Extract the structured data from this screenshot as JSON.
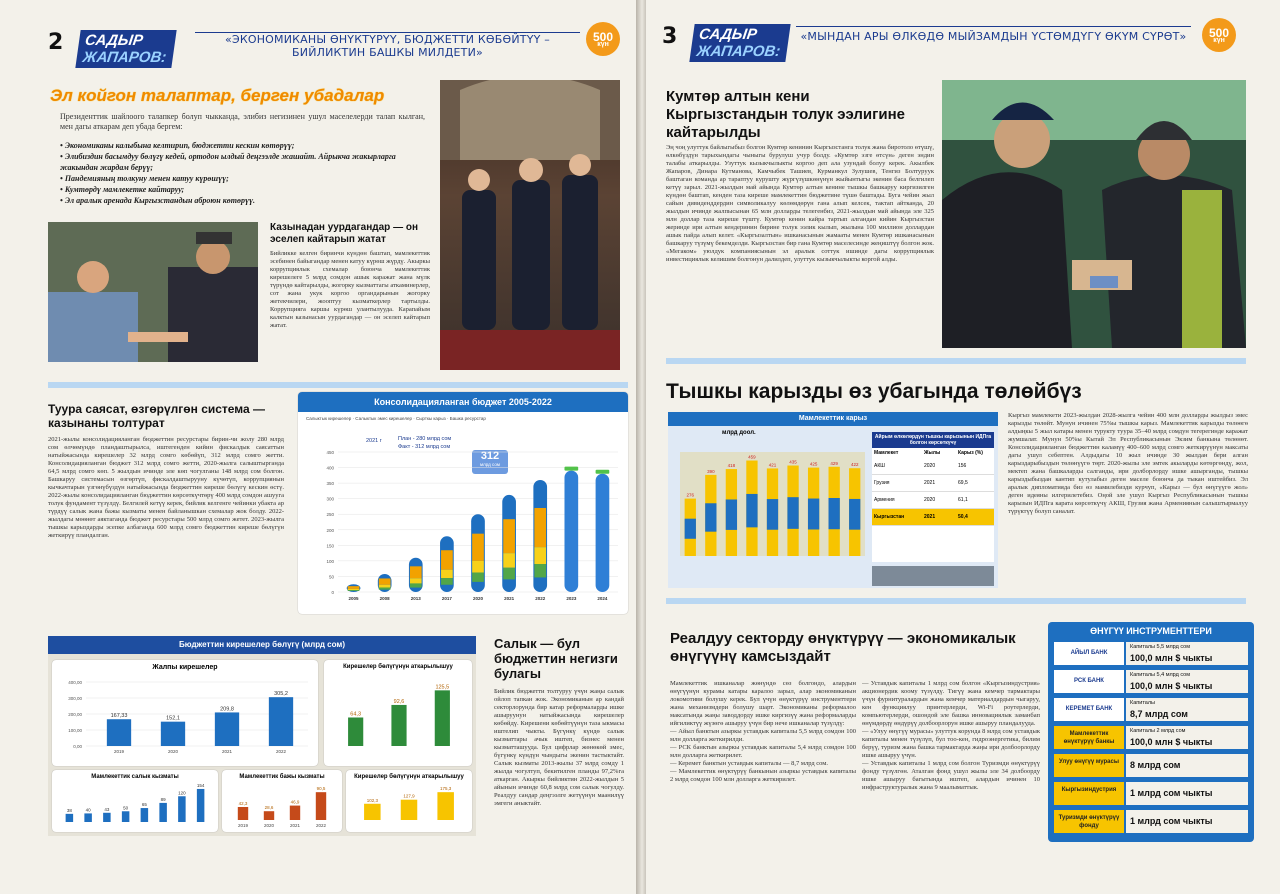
{
  "left_page": {
    "number": "2",
    "badge_line1": "САДЫР",
    "badge_line2": "ЖАПАРОВ:",
    "header_quote": "«ЭКОНОМИКАНЫ ӨНҮКТҮРҮҮ, БЮДЖЕТТИ КӨБӨЙТҮҮ – БИЙЛИКТИН БАШКЫ МИЛДЕТИ»",
    "anniversary": "500",
    "anniversary_sub": "күн",
    "main_headline": "Эл койгон талаптар, берген убадалар",
    "intro": "Президенттик шайлоого талапкер болуп чыкканда, элибиз негизинен ушул маселелерди талап кылган, мен дагы аткарам деп убада бергем:",
    "promises": [
      "Экономиканы калыбына келтирип, бюджетти кескин көтөрүү;",
      "Элибиздин басымдуу бөлүгү кедей, ортодон ылдый деңгээлде жашайт. Айрыкча жакырларга жакындан жардам берүү;",
      "Пандемияның толкуну менен катуу күрөшүү;",
      "Кумтөрдү мамлекетке кайтаруу;",
      "Эл аралык аренада Кыргызстандын аброюн көтөрүү."
    ],
    "corruption_title": "Казынадан уурдагандар — он эселеп кайтарып жатат",
    "corruption_text": "Бийликке келген биринчи күндөн баштап, мамлекеттик эсебинен байыгандар менен катуу күрөш жүрдү. Акыркы коррупциялык схемалар боюнча мамлекеттик кирешелеге 5 млрд сомдон ашык каражат жана мүлк түрүндө кайтарылды, жогорку кызматтагы аткаминерлер, сот жана укук коргоо органдарынын жогорку жетекчилери, жооптуу кызматкерлер тартылды. Коррупцияга каршы күрөш улантылууда. Карапайым калктын казынасын уурдагандар — он эселеп кайтарып жатат.",
    "policy_title": "Туура саясат, өзгөрүлгөн система — казынаны толтурат",
    "policy_text": "2021-жылы консолидацияланган бюджеттин ресурстары бирин-чи жолу 280 млрд сом өлчөмүндө пландаштырылса, иштегенден кийин фискалдык саясаттын натыйжасында кирешелер 32 млрд сомго көбөйүп, 312 млрд сомго жетти. Консолидацияланган бюджет 312 млрд сомго жетти, 2020-жылга салыштырганда 64,5 млрд сомго көп. 5 жылдын ичинде эле көп чогулганы 148 млрд сом болгон. Башкаруу системасын өзгөртүп, фискалдаштырууну күчөтүп, коррупциянын кычкачтарын үзгөнүбүздүн натыйжасында бюджеттин киреше бөлүгү кескин өстү. 2022-жылы консолидацияланган бюджеттин көрсөткүчтөрү 400 млрд сомдон ашууга толук фундамент түзүлдү. Белгилей кетүү керек, бийлик келгенге чейинки убакта ар түрдүү салык жана бажы кызматы менен байланышкан схемалар жок болду. 2022-жылдагы мөөнөт аяктаганда бюджет ресурстары 500 млрд сомго жетет. 2023-жылга тышкы карыздарды эсепке албаганда 600 млрд сомго бюджеттин киреше бөлүгүн жеткирүү пландалган.",
    "tax_title": "Салык — бул бюджеттин негизги булагы",
    "tax_text": "Бийлик бюджетти толтуруу үчүн жаңы салык ойлоп тапкан жок. Экономиканын ар кандай секторлорунда бир катар реформаларды ишке ашыруунун натыйжасында кирешелер көбөйдү. Кирешени көбөйтүүнүн таза ыкмасы иштелип чыкты. Бүгүнкү күндө салык кызматтары ачык иштеп, бизнес менен кызматташууда. Бул цифрлар жөнөкөй эмес, бүгүнкү күндүн чындыгы экенин тастыктайт. Салык кызматы 2013-жылы 37 млрд сомду 1 жылда чогултуп, бекитилген планды 97,2%га аткарган. Акыркы бийликтин 2022-жылдын 5 айынын ичинде 60,8 млрд сом салык чогулду. Реалдуу сандар деңгээлге жетүүнүн маанилүү эмгеги аныктайт."
  },
  "consolidated_chart": {
    "title": "Консолидацияланган бюджет 2005-2022",
    "legend": [
      "Салыктык кирешелер",
      "Салыктык эмес кирешелер",
      "Сырткы карыз",
      "Башка ресурстар"
    ],
    "plan_text": "План - 280 млрд сом",
    "fact_text": "Факт - 312 млрд сом",
    "year_note": "2021 г",
    "callout_value": "312",
    "callout_unit": "млрд сом"
  },
  "chart_data": [
    {
      "type": "bar",
      "title": "Консолидацияланган бюджет 2005-2022",
      "categories": [
        "2005",
        "2008",
        "2013",
        "2017",
        "2020",
        "2021",
        "2022",
        "2023",
        "2024"
      ],
      "values": [
        25,
        58,
        110,
        179,
        250,
        312,
        360,
        390,
        380
      ],
      "ylim": [
        0,
        450
      ]
    },
    {
      "type": "bar",
      "title": "Жалпы кирешелер",
      "categories": [
        "2019",
        "2020",
        "2021",
        "2022"
      ],
      "values": [
        167.33,
        152.1,
        209.8,
        305.2
      ]
    },
    {
      "type": "bar",
      "title": "Кирешелер бөлүгүнүн аткарылышы",
      "values": [
        64.3,
        92.6,
        125.5
      ]
    },
    {
      "type": "bar",
      "title": "Мамлекеттик салык кызматы",
      "values": [
        38,
        40,
        43,
        50,
        65,
        89,
        120,
        154
      ]
    },
    {
      "type": "bar",
      "title": "Мамлекеттик бажы кызматы",
      "categories": [
        "2019",
        "2020",
        "2021",
        "2022"
      ],
      "values": [
        42.3,
        28.6,
        46.9,
        90.5
      ]
    },
    {
      "type": "bar",
      "title": "Кирешелер бөлүгүнүн аткарылышуу",
      "values": [
        102.3,
        127.9,
        175.3
      ]
    }
  ],
  "revenue_panel": {
    "title": "Бюджеттин кирешелер бөлүгү (млрд сом)",
    "axis_ticks": [
      "400,00",
      "300,00",
      "200,00",
      "100,00",
      "0,00"
    ]
  },
  "right_page": {
    "number": "3",
    "badge_line1": "САДЫР",
    "badge_line2": "ЖАПАРОВ:",
    "header_quote": "«МЫНДАН АРЫ ӨЛКӨДӨ МЫЙЗАМДЫН ҮСТӨМДҮГҮ ӨКҮМ СҮРӨТ»",
    "anniversary": "500",
    "anniversary_sub": "күн",
    "kumtor_title": "Кумтөр алтын кени Кыргызстандын толук ээлигине кайтарылды",
    "kumtor_text": "Эң чоң улуттук байлыгыбыз болгон Кумтөр кенинин Кыргызстанга толук жана биротоло өтүшү, өлкөбүздүн тарыхындагы чыныгы бурулуш учур болду. «Кумтөр эзге өтсүн» деген эндин талабы аткарылды. Узуттук кызыкчылыкты коргоо деп ала узундай болуу керек. Акылбек Жапаров, Динара Кутманова, Камчыбек Ташиев, Курманкул Зулушев, Тенгиз Болтуруук баштаган команда ар тараптуу курушту жүргүзүшкөнүнүн жыйынтыгы экенин баса белгилеп кетүү зарыл. 2021-жылдын май айында Кумтөр алтын кенине тышкы башкаруу киргизилген күндөн баштап, кенден таза киреше мамлекеттин бюджетине түшө баштады. Буга чейин жыл сайын дивиденддердин символикалуу көлөмдөрүн гана алып келсек, тактап айтканда, 20 жылдын ичинде жалпысынан 65 млн долларды телегенбиз, 2021-жылдын май айында эле 325 млн доллар таза киреше түштү. Кумтөр кенин кайра тартып алгандан кийин Кыргызстан жеринде ири алтын кендеринин бирине толук ээлик кылып, жылына 100 миллион доллардан ашык пайда алып келет. «Кыргызалтын» ишканасынын жамааты менен Кумтөр ишканасынын башкаруу түзүмү бекемделди. Кыргызстан бир гана Кумтөр маселесинде жеңиштүү болгон жок. «Мегаком» уюлдук компаниясынын эл аралык соттук ишинде дагы коррупциялык инвестициялык келишим болгонун далилдеп, улуттук кызыкчылыкты коргой алды.",
    "debt_title": "Тышкы карызды өз убагында төлөйбүз",
    "debt_text": "Кыргыз мамлекети 2023-жылдан 2028-жылга чейин 400 млн долларды жылдыз эмес карызды төлөйт. Мунун ичинен 75%ы тышкы карыз. Мамлекеттик карызды төлөөгө алдыңкы 5 жыл катары менен турукту туура 35–40 млрд сомдун тегерегинде каражат жумшалат. Мунун 50%ы Кытай Эл Республикасынын Экзим банкына төлөнөт. Консолидацияланган бюджеттин каламүү 400–600 млрд сомго жеткирүүнүн максаты дагы ушул себептен. Алдыдагы 10 жыл ичинде 30 жылдан бери алган карыздарыбыздын төлөнүүгө төрт. 2020-жылы эле эмтек акыларды көтөргөндү, жол, мектеп жана башкаларды салганды, ири долборлорду ишке ашырганды, тышкы карыздыбыздан кантип кутулабыз деген маселе боюнча да тыкан иштейбиз. Эл аралык дипломатияда биз өз мамилебизди курчуп, «Карыз — бул өнүгүүгө жол» деген идеяны илгерилетебиз. Оңой эле ушул Кыргыз Республикасынын тышкы карызын ИДПга карата көрсөткүчү АКШ, Грузия жана Армениянын салыштырмалуу түрүктүү болуп саналат.",
    "debt_chart_title": "Мамлекеттик карыз",
    "debt_chart_unit": "млрд доол.",
    "debt_table_title": "Айрым өлкөлөрдүн тышкы карызынын ИДПга болгон көрсөткүчү",
    "debt_table_cols": [
      "Мамлекет",
      "Жылы",
      "Карыз (%)"
    ],
    "debt_table_rows": [
      [
        "АКШ",
        "2020",
        "156"
      ],
      [
        "Грузия",
        "2021",
        "69,5"
      ],
      [
        "Армения",
        "2020",
        "61,1"
      ],
      [
        "Кыргызстан",
        "2021",
        "50,4"
      ]
    ],
    "real_title": "Реалдуу секторду өнүктүрүү — экономикалык өнүгүүнү камсыздайт",
    "real_text1": "Мамлекеттик ишканалар жөнүндө сөз болгондо, алардын өнүгүүнүн курамы катары каралоо зарыл, алар экономиканын локомотиви болушу керек. Бул үчүн өнүктүрүү инструменттери жана механизмдери болушу шарт. Экономиканы реформалоо максатында жаңы заводдорду ишке киргизүү жана реформаларды ийгиликтүү жүзөгө ашыруу үчүн бир нече ишканалар түзүлдү:\n— Айыл банктын азыркы уставдык капиталы 5,5 млрд сомдон 100 млн долларга жеткирилди.\n— РСК банктын азыркы уставдык капиталы 5,4 млрд сомдон 100 млн долларга жеткирилет.\n— Керемет банктын уставдык капиталы — 8,7 млрд сом.\n— Мамлекеттик өнүктүрүү банкынын азыркы уставдык капиталы 2 млрд сомдон 100 млн долларга жеткирилет.",
    "real_text2": "— Уставдык капиталы 1 млрд сом болгон «Кыргызиндустрия» акционердик коому түзүлдү. Тигүү жана кемчер тармактары үчүн фурнитуралардын жана кемчер материалдардын чыгаруу, кен функциялуу принтерлерди, Wi-Fi роутерлерди, компьютерлерди, ошондой эле башка инновациялык заманбап өнүмдөрдү өндүрүү долбоорлорун ишке ашыруу пландалууда.\n— «Улуу өнүгүү мурасы» улуттук корунда 8 млрд сом уставдык капиталы менен түзүлүп, бул тоо-кен, гидроэнергетика, билим берүү, туризм жана башка тармактарда жаңы ири долбоорлорду ишке ашыруу үчүн.\n— Уставдык капиталы 1 млрд сом болгон Туризмди өнүктүрүү фонду түзүлгөн. Аталган фонд ушул жылы эле 34 долбоорду ишке ашыруу багытында иштеп, алардын ичинен 10 инфраструктуралык жана 9 маалыматтык.",
    "tools_title": "ӨНҮГҮҮ ИНСТРУМЕНТТЕРИ",
    "tools": [
      {
        "name": "АЙЫЛ БАНК",
        "line1": "Капиталы 5,5 млрд сом",
        "line2": "100,0 млн $ чыкты"
      },
      {
        "name": "РСК БАНК",
        "line1": "Капиталы 5,4 млрд сом",
        "line2": "100,0 млн $ чыкты"
      },
      {
        "name": "КЕРЕМЕТ БАНК",
        "line1": "Капиталы",
        "line2": "8,7 млрд сом"
      },
      {
        "name": "Мамлекеттик өнүктүрүү банкы",
        "line1": "Капиталы 2 млрд сом",
        "line2": "100,0 млн $ чыкты"
      },
      {
        "name": "Улуу өнүгүү мурасы",
        "line1": "",
        "line2": "8 млрд сом"
      },
      {
        "name": "Кыргызиндустрия",
        "line1": "",
        "line2": "1 млрд сом чыкты"
      },
      {
        "name": "Туризмди өнүктүрүү фонду",
        "line1": "",
        "line2": "1 млрд сом чыкты"
      }
    ]
  },
  "debt_chart": {
    "values": [
      276,
      390,
      418,
      459,
      421,
      435,
      425,
      429,
      422
    ]
  },
  "sub_panels": {
    "revenue_exec_title": "Кирешелер бөлүгүнүн аткарылышуу",
    "tax_service_title": "Мамлекеттик салык кызматы",
    "customs_title": "Мамлекеттик бажы кызматы",
    "revenue_exec2_title": "Кирешелер бөлүгүнүн аткарылышуу",
    "total_revenue_title": "Жалпы кирешелер"
  }
}
